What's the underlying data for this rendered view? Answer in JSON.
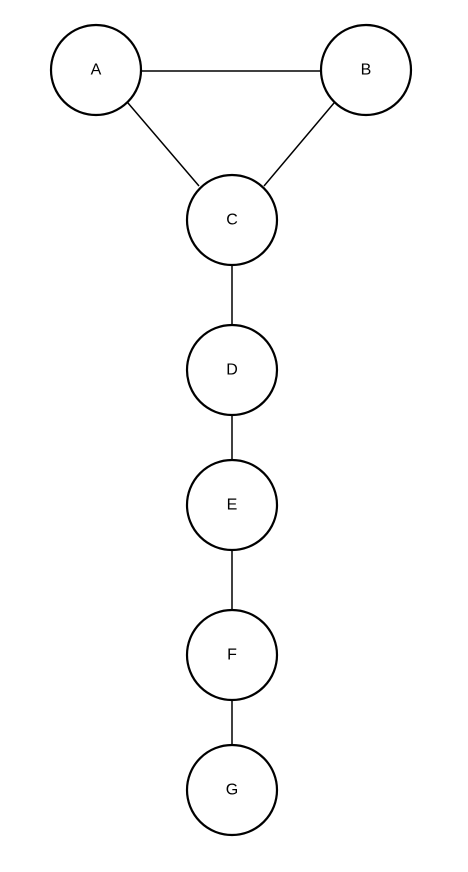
{
  "diagram": {
    "nodes": [
      {
        "id": "A",
        "label": "A"
      },
      {
        "id": "B",
        "label": "B"
      },
      {
        "id": "C",
        "label": "C"
      },
      {
        "id": "D",
        "label": "D"
      },
      {
        "id": "E",
        "label": "E"
      },
      {
        "id": "F",
        "label": "F"
      },
      {
        "id": "G",
        "label": "G"
      }
    ],
    "edges": [
      {
        "from": "A",
        "to": "B"
      },
      {
        "from": "A",
        "to": "C"
      },
      {
        "from": "B",
        "to": "C"
      },
      {
        "from": "C",
        "to": "D"
      },
      {
        "from": "D",
        "to": "E"
      },
      {
        "from": "E",
        "to": "F"
      },
      {
        "from": "F",
        "to": "G"
      }
    ]
  }
}
